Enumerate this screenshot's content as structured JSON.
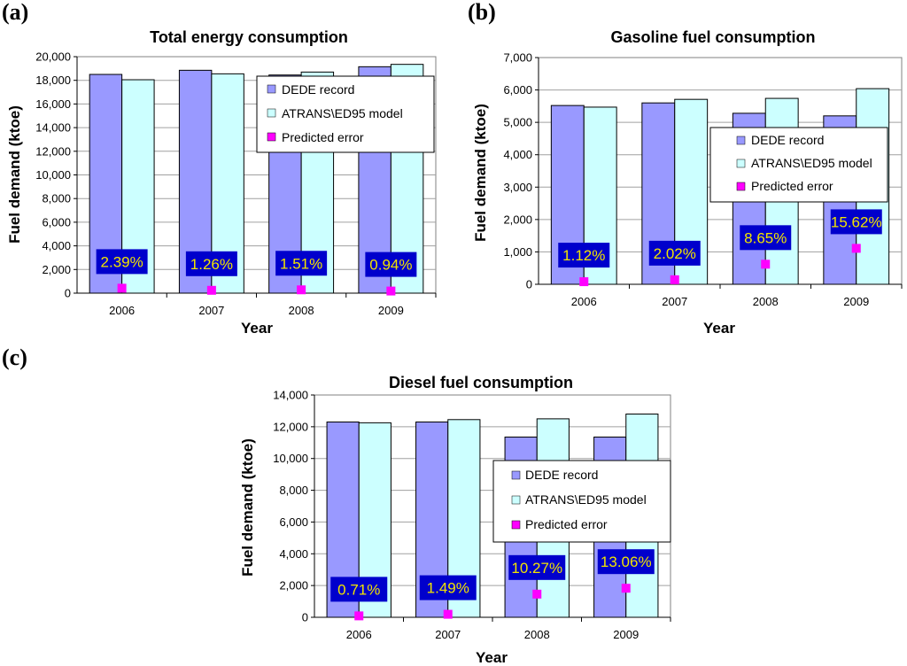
{
  "colors": {
    "dede": "#9999ff",
    "model": "#ccffff",
    "error": "#ff00ff",
    "label_bg": "#0000cc",
    "label_text": "#f2e400",
    "bar_stroke": "#000000"
  },
  "legend": {
    "dede": "DEDE record",
    "model": "ATRANS\\ED95 model",
    "error": "Predicted error"
  },
  "chart_data": [
    {
      "id": "a",
      "panel_label": "(a)",
      "type": "bar",
      "title": "Total energy consumption",
      "xlabel": "Year",
      "ylabel": "Fuel demand (ktoe)",
      "ylim": [
        0,
        20000
      ],
      "yticks": [
        "0",
        "2,000",
        "4,000",
        "6,000",
        "8,000",
        "10,000",
        "12,000",
        "14,000",
        "16,000",
        "18,000",
        "20,000"
      ],
      "categories": [
        "2006",
        "2007",
        "2008",
        "2009"
      ],
      "series": [
        {
          "name": "DEDE record",
          "values": [
            18500,
            18850,
            18450,
            19150
          ]
        },
        {
          "name": "ATRANS\\ED95 model",
          "values": [
            18050,
            18550,
            18700,
            19350
          ]
        }
      ],
      "error_points": [
        420,
        240,
        280,
        180
      ],
      "error_labels": [
        "2.39%",
        "1.26%",
        "1.51%",
        "0.94%"
      ]
    },
    {
      "id": "b",
      "panel_label": "(b)",
      "type": "bar",
      "title": "Gasoline fuel consumption",
      "xlabel": "Year",
      "ylabel": "Fuel demand (ktoe)",
      "ylim": [
        0,
        7000
      ],
      "yticks": [
        "0",
        "1,000",
        "2,000",
        "3,000",
        "4,000",
        "5,000",
        "6,000",
        "7,000"
      ],
      "categories": [
        "2006",
        "2007",
        "2008",
        "2009"
      ],
      "series": [
        {
          "name": "DEDE record",
          "values": [
            5520,
            5600,
            5280,
            5200
          ]
        },
        {
          "name": "ATRANS\\ED95 model",
          "values": [
            5470,
            5710,
            5740,
            6040
          ]
        }
      ],
      "error_points": [
        80,
        140,
        620,
        1110
      ],
      "error_labels": [
        "1.12%",
        "2.02%",
        "8.65%",
        "15.62%"
      ]
    },
    {
      "id": "c",
      "panel_label": "(c)",
      "type": "bar",
      "title": "Diesel fuel consumption",
      "xlabel": "Year",
      "ylabel": "Fuel demand (ktoe)",
      "ylim": [
        0,
        14000
      ],
      "yticks": [
        "0",
        "2,000",
        "4,000",
        "6,000",
        "8,000",
        "10,000",
        "12,000",
        "14,000"
      ],
      "categories": [
        "2006",
        "2007",
        "2008",
        "2009"
      ],
      "series": [
        {
          "name": "DEDE record",
          "values": [
            12300,
            12300,
            11350,
            11350
          ]
        },
        {
          "name": "ATRANS\\ED95 model",
          "values": [
            12250,
            12450,
            12500,
            12800
          ]
        }
      ],
      "error_points": [
        90,
        190,
        1460,
        1830
      ],
      "error_labels": [
        "0.71%",
        "1.49%",
        "10.27%",
        "13.06%"
      ]
    }
  ]
}
